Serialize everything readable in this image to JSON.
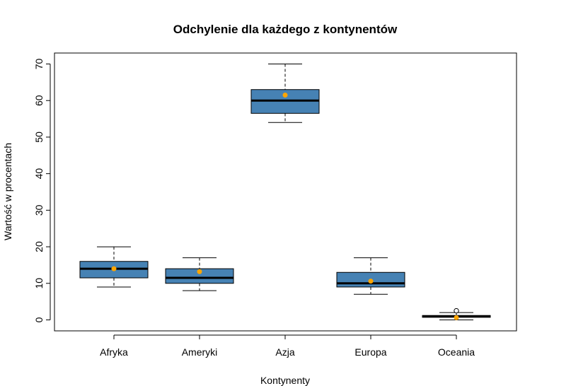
{
  "chart_data": {
    "type": "boxplot",
    "title": "Odchylenie dla każdego z kontynentów",
    "xlabel": "Kontynenty",
    "ylabel": "Wartość w procentach",
    "ylim": [
      -3,
      73
    ],
    "yticks": [
      0,
      10,
      20,
      30,
      40,
      50,
      60,
      70
    ],
    "grid": false,
    "colors": {
      "box_fill": "#4682B4",
      "mean_point": "#FFA500",
      "outline": "#000000"
    },
    "categories": [
      "Afryka",
      "Ameryki",
      "Azja",
      "Europa",
      "Oceania"
    ],
    "boxes": [
      {
        "category": "Afryka",
        "whisker_low": 9,
        "q1": 11.5,
        "median": 14,
        "q3": 16,
        "whisker_high": 20,
        "mean": 14,
        "outliers": []
      },
      {
        "category": "Ameryki",
        "whisker_low": 8,
        "q1": 10,
        "median": 11.5,
        "q3": 14,
        "whisker_high": 17,
        "mean": 13.2,
        "outliers": []
      },
      {
        "category": "Azja",
        "whisker_low": 54,
        "q1": 56.5,
        "median": 60,
        "q3": 63,
        "whisker_high": 70,
        "mean": 61.5,
        "outliers": []
      },
      {
        "category": "Europa",
        "whisker_low": 7,
        "q1": 9,
        "median": 10,
        "q3": 13,
        "whisker_high": 17,
        "mean": 10.6,
        "outliers": []
      },
      {
        "category": "Oceania",
        "whisker_low": 0,
        "q1": 0.7,
        "median": 1,
        "q3": 1.2,
        "whisker_high": 2,
        "mean": 0.6,
        "outliers": [
          2.5
        ]
      }
    ]
  }
}
